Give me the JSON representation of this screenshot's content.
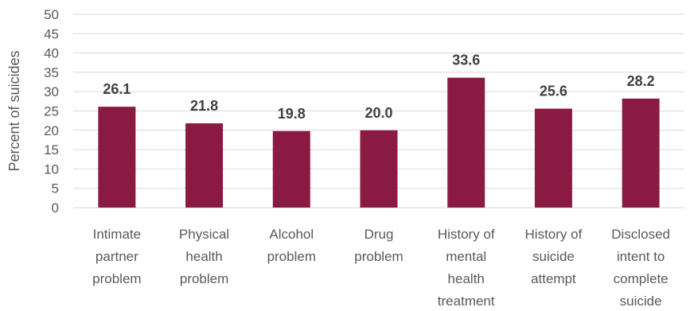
{
  "chart_data": {
    "type": "bar",
    "categories": [
      [
        "Intimate",
        "partner",
        "problem"
      ],
      [
        "Physical",
        "health",
        "problem"
      ],
      [
        "Alcohol",
        "problem"
      ],
      [
        "Drug",
        "problem"
      ],
      [
        "History of",
        "mental",
        "health",
        "treatment"
      ],
      [
        "History of",
        "suicide",
        "attempt"
      ],
      [
        "Disclosed",
        "intent to",
        "complete",
        "suicide"
      ]
    ],
    "values": [
      26.1,
      21.8,
      19.8,
      20.0,
      33.6,
      25.6,
      28.2
    ],
    "data_labels": [
      "26.1",
      "21.8",
      "19.8",
      "20.0",
      "33.6",
      "25.6",
      "28.2"
    ],
    "ylabel": "Percent of suicides",
    "ylim": [
      0,
      50
    ],
    "yticks": [
      "0",
      "5",
      "10",
      "15",
      "20",
      "25",
      "30",
      "35",
      "40",
      "45",
      "50"
    ],
    "grid": true,
    "bar_color": "#8b1a42"
  }
}
